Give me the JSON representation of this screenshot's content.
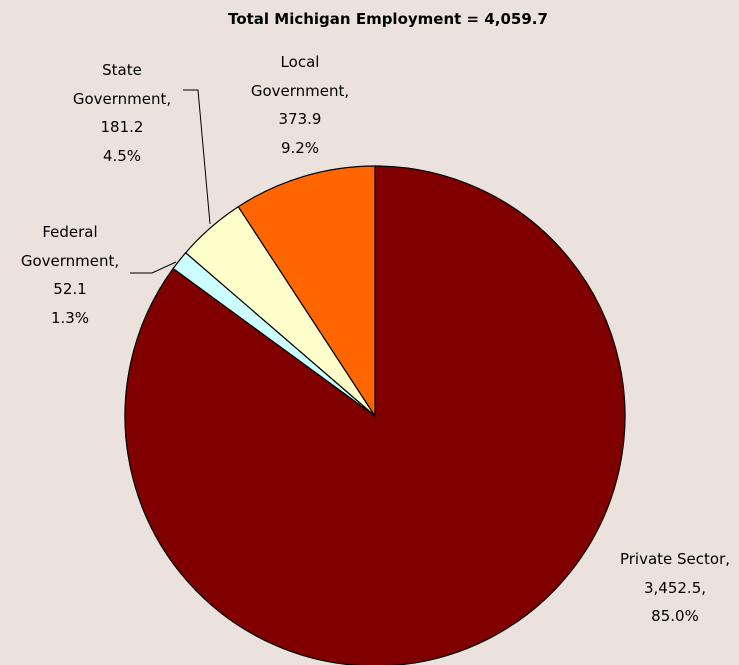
{
  "chart_data": {
    "type": "pie",
    "title": "Total Michigan Employment = 4,059.7",
    "categories": [
      "Private Sector,",
      "Federal Government,",
      "State Government,",
      "Local Government,"
    ],
    "values": [
      3452.5,
      52.1,
      181.2,
      373.9
    ],
    "value_labels": [
      "3,452.5,",
      "52.1",
      "181.2",
      "373.9"
    ],
    "percent_labels": [
      "85.0%",
      "1.3%",
      "4.5%",
      "9.2%"
    ],
    "colors": [
      "#800000",
      "#ccffff",
      "#ffffcc",
      "#ff6600"
    ]
  }
}
